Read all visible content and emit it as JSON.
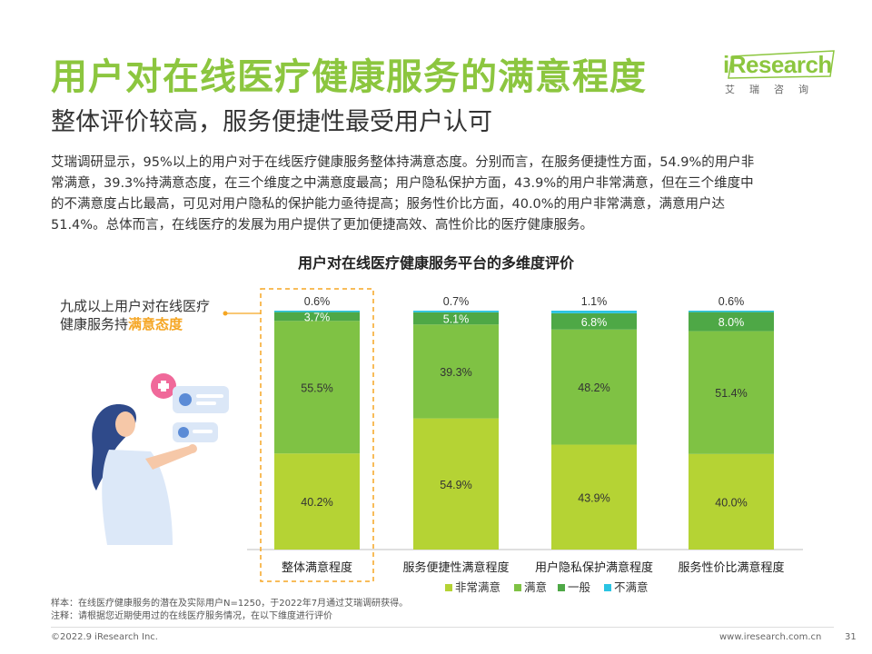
{
  "header": {
    "title": "用户对在线医疗健康服务的满意程度",
    "subtitle": "整体评价较高，服务便捷性最受用户认可"
  },
  "logo": {
    "brand": "iResearch",
    "cn": "艾瑞咨询"
  },
  "summary": {
    "lines": [
      "艾瑞调研显示，95%以上的用户对于在线医疗健康服务整体持满意态度。分别而言，在服务便捷性方面，54.9%的用户非",
      "常满意，39.3%持满意态度，在三个维度之中满意度最高；用户隐私保护方面，43.9%的用户非常满意，但在三个维度中",
      "的不满意度占比最高，可见对用户隐私的保护能力亟待提高；服务性价比方面，40.0%的用户非常满意，满意用户达",
      "51.4%。总体而言，在线医疗的发展为用户提供了更加便捷高效、高性价比的医疗健康服务。"
    ]
  },
  "callout": {
    "text_part1": "九成以上用户对在线医疗健康服务持",
    "text_highlight": "满意态度"
  },
  "chart_data": {
    "type": "bar",
    "stacked": true,
    "title": "用户对在线医疗健康服务平台的多维度评价",
    "categories": [
      "整体满意程度",
      "服务便捷性满意程度",
      "用户隐私保护满意程度",
      "服务性价比满意程度"
    ],
    "series": [
      {
        "name": "非常满意",
        "color": "#b5d334",
        "values": [
          40.2,
          54.9,
          43.9,
          40.0
        ]
      },
      {
        "name": "满意",
        "color": "#7fc244",
        "values": [
          55.5,
          39.3,
          48.2,
          51.4
        ]
      },
      {
        "name": "一般",
        "color": "#4ea846",
        "values": [
          3.7,
          5.1,
          6.8,
          8.0
        ]
      },
      {
        "name": "不满意",
        "color": "#2bc4e3",
        "values": [
          0.6,
          0.7,
          1.1,
          0.6
        ]
      }
    ],
    "labels": [
      [
        "40.2%",
        "55.5%",
        "3.7%",
        "0.6%"
      ],
      [
        "54.9%",
        "39.3%",
        "5.1%",
        "0.7%"
      ],
      [
        "43.9%",
        "48.2%",
        "6.8%",
        "1.1%"
      ],
      [
        "40.0%",
        "51.4%",
        "8.0%",
        "0.6%"
      ]
    ],
    "ylim": [
      0,
      100
    ],
    "highlight_category": 0,
    "highlight_color": "#f5a623",
    "legend_position": "bottom"
  },
  "notes": {
    "sample": "样本：在线医疗健康服务的潜在及实际用户N=1250，于2022年7月通过艾瑞调研获得。",
    "remark": "注释：请根据您近期使用过的在线医疗服务情况，在以下维度进行评价"
  },
  "footer": {
    "copyright": "©2022.9 iResearch Inc.",
    "website": "www.iresearch.com.cn",
    "page": "31"
  }
}
